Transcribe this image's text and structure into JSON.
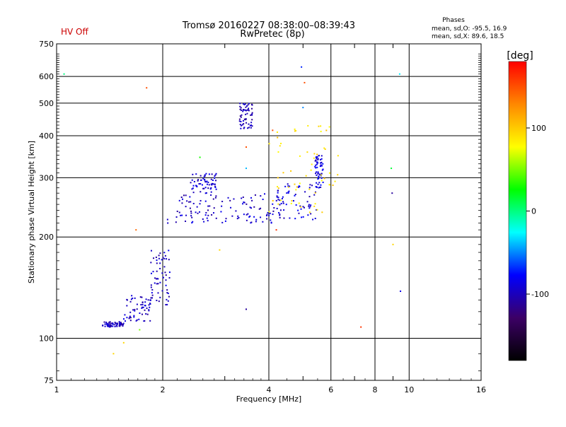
{
  "header": {
    "title": "Tromsø 20160227 08:38:00–08:39:43",
    "subtitle": "RwPretec (8p)",
    "status": "HV Off",
    "phases": {
      "heading": "Phases",
      "line1": "mean, sd,O: -95.5, 16.9",
      "line2": "mean, sd,X:  89.6, 18.5"
    }
  },
  "colors": {
    "status": "#cc0000",
    "frame": "#000000",
    "grid": "#000000"
  },
  "chart_data": {
    "type": "scatter",
    "title": "Tromsø 20160227 08:38:00–08:39:43",
    "subtitle": "RwPretec (8p)",
    "xlabel": "Frequency [MHz]",
    "ylabel": "Stationary phase Virtual Height [km]",
    "x_scale": "log2",
    "y_scale": "log",
    "xlim": [
      1,
      16
    ],
    "ylim": [
      75,
      750
    ],
    "x_ticks": [
      1,
      2,
      4,
      6,
      8,
      10,
      16
    ],
    "x_minor_ticks": [
      3,
      5,
      7,
      9
    ],
    "y_ticks": [
      75,
      100,
      200,
      300,
      400,
      500,
      600,
      750
    ],
    "grid": true,
    "colorbar": {
      "label": "[deg]",
      "min": -180,
      "max": 180,
      "ticks": [
        100,
        0,
        -100
      ],
      "stops": [
        "#000000",
        "#3c0066",
        "#0000ff",
        "#00ffff",
        "#00ff00",
        "#ffff00",
        "#ff8800",
        "#ff0000"
      ]
    },
    "clusters": [
      {
        "name": "low-f1",
        "f": [
          1.35,
          1.55
        ],
        "h": [
          108,
          112
        ],
        "phase": -100
      },
      {
        "name": "low-f1-rise",
        "f": [
          1.55,
          1.85
        ],
        "h": [
          112,
          135
        ],
        "phase": -98
      },
      {
        "name": "low-f1-steep",
        "f": [
          1.85,
          2.1
        ],
        "h": [
          125,
          185
        ],
        "phase": -96
      },
      {
        "name": "F-low-band",
        "f": [
          2.05,
          4.3
        ],
        "h": [
          220,
          238
        ],
        "phase": -95
      },
      {
        "name": "F-mid-band",
        "f": [
          2.2,
          4.6
        ],
        "h": [
          238,
          270
        ],
        "phase": -97
      },
      {
        "name": "F-bump",
        "f": [
          2.4,
          2.85
        ],
        "h": [
          270,
          310
        ],
        "phase": -92
      },
      {
        "name": "F-rise",
        "f": [
          4.2,
          5.5
        ],
        "h": [
          225,
          290
        ],
        "phase": -90
      },
      {
        "name": "F-cusp",
        "f": [
          5.4,
          5.7
        ],
        "h": [
          280,
          350
        ],
        "phase": -88
      },
      {
        "name": "X-mode",
        "f": [
          4.0,
          6.3
        ],
        "h": [
          235,
          440
        ],
        "phase": 90
      },
      {
        "name": "high-echo",
        "f": [
          3.3,
          3.6
        ],
        "h": [
          420,
          500
        ],
        "phase": -100
      }
    ],
    "isolated_points": [
      {
        "f": 1.05,
        "h": 610,
        "phase": 0
      },
      {
        "f": 1.8,
        "h": 555,
        "phase": 150
      },
      {
        "f": 1.68,
        "h": 210,
        "phase": 140
      },
      {
        "f": 1.72,
        "h": 106,
        "phase": 50
      },
      {
        "f": 1.55,
        "h": 97,
        "phase": 95
      },
      {
        "f": 1.45,
        "h": 90,
        "phase": 95
      },
      {
        "f": 2.9,
        "h": 183,
        "phase": 95
      },
      {
        "f": 3.45,
        "h": 122,
        "phase": -110
      },
      {
        "f": 3.45,
        "h": 370,
        "phase": 150
      },
      {
        "f": 4.1,
        "h": 415,
        "phase": 150
      },
      {
        "f": 4.2,
        "h": 210,
        "phase": 160
      },
      {
        "f": 4.95,
        "h": 640,
        "phase": -70
      },
      {
        "f": 5.0,
        "h": 485,
        "phase": -50
      },
      {
        "f": 5.05,
        "h": 575,
        "phase": 150
      },
      {
        "f": 7.3,
        "h": 108,
        "phase": 160
      },
      {
        "f": 8.9,
        "h": 320,
        "phase": 15
      },
      {
        "f": 8.95,
        "h": 270,
        "phase": -110
      },
      {
        "f": 9.0,
        "h": 190,
        "phase": 95
      },
      {
        "f": 9.4,
        "h": 610,
        "phase": -30
      },
      {
        "f": 9.45,
        "h": 138,
        "phase": -85
      },
      {
        "f": 2.55,
        "h": 345,
        "phase": 30
      },
      {
        "f": 3.45,
        "h": 320,
        "phase": -40
      }
    ]
  }
}
